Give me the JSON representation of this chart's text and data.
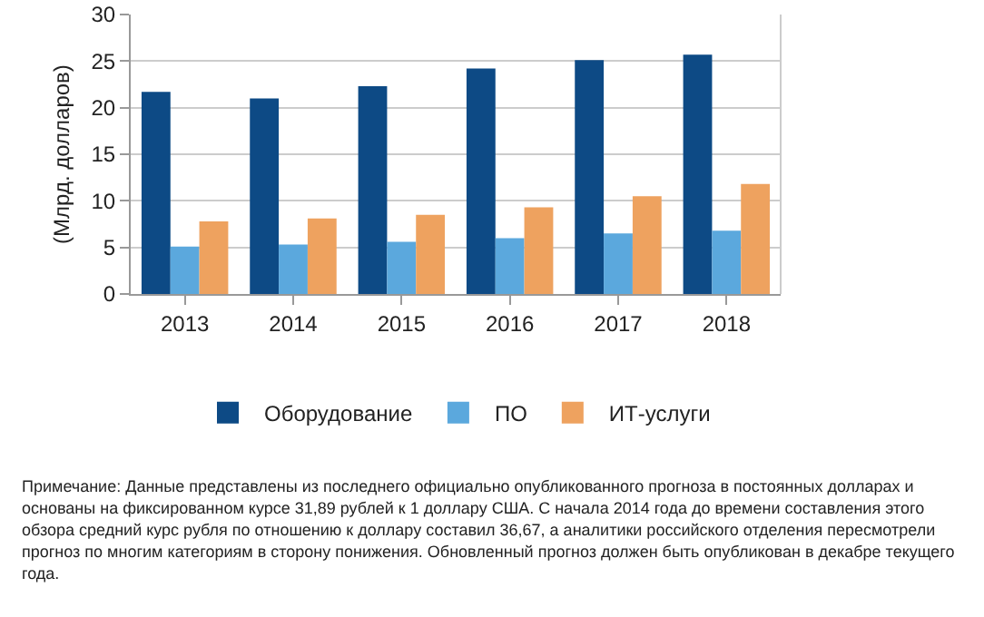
{
  "chart_data": {
    "type": "bar",
    "ylabel": "(Млрд. долларов)",
    "categories": [
      "2013",
      "2014",
      "2015",
      "2016",
      "2017",
      "2018"
    ],
    "series": [
      {
        "name": "Оборудование",
        "color": "#0d4a85",
        "values": [
          21.7,
          21.0,
          22.3,
          24.2,
          25.1,
          25.7
        ]
      },
      {
        "name": "ПО",
        "color": "#5ba8dd",
        "values": [
          5.1,
          5.3,
          5.6,
          6.0,
          6.5,
          6.8
        ]
      },
      {
        "name": "ИТ-услуги",
        "color": "#eea25f",
        "values": [
          7.8,
          8.1,
          8.5,
          9.3,
          10.5,
          11.8
        ]
      }
    ],
    "ylim": [
      0,
      30
    ],
    "yticks": [
      0,
      5,
      10,
      15,
      20,
      25,
      30
    ],
    "grid": "y",
    "legend": "bottom",
    "annotations": [
      "Примечание: Данные представлены из последнего официально опубликованного прогноза в постоянных долларах и основаны на фиксированном курсе 31,89 рублей к 1 доллару США. С начала 2014 года до времени составления этого обзора средний курс рубля по отношению к доллару составил 36,67, а аналитики российского отделения пересмотрели прогноз по многим категориям в сторону понижения. Обновленный прогноз должен быть опубликован в декабре текущего года."
    ]
  }
}
